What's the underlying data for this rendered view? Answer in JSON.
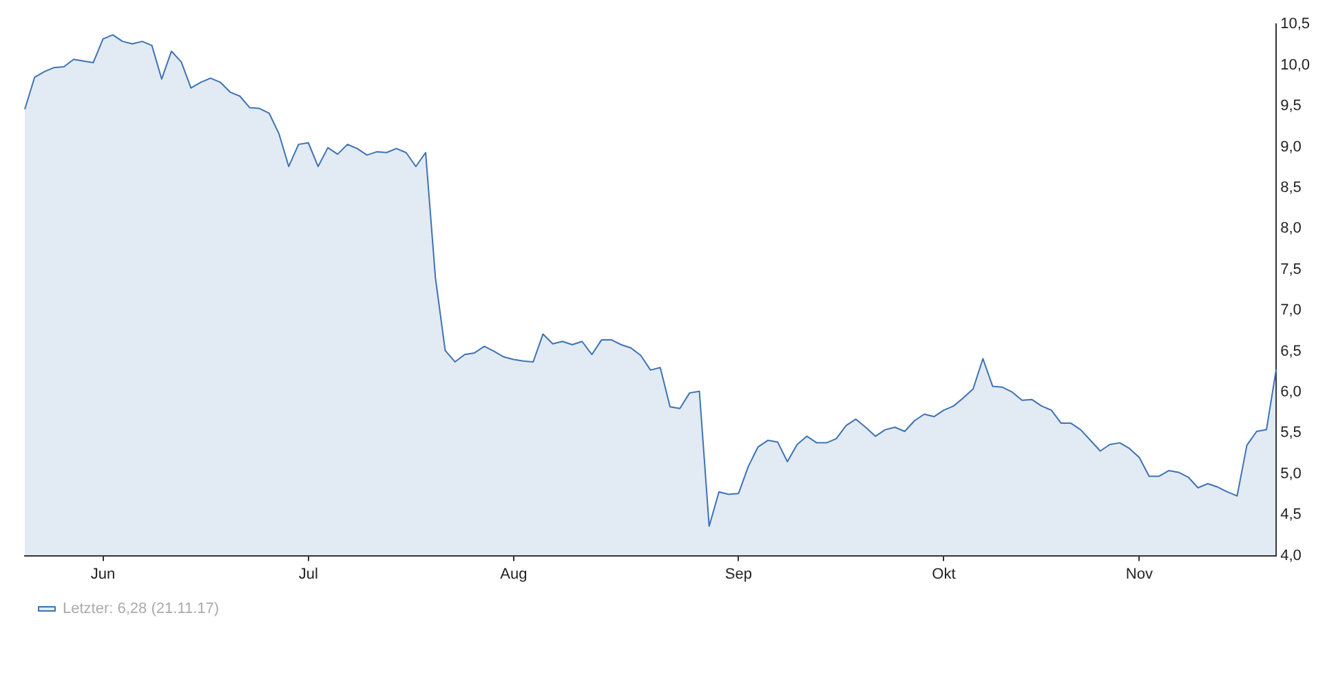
{
  "chart_data": {
    "type": "area",
    "categories": [
      null,
      null,
      null,
      null,
      null,
      null,
      null,
      null,
      "Jun",
      null,
      null,
      null,
      null,
      null,
      null,
      null,
      null,
      null,
      null,
      null,
      null,
      null,
      null,
      null,
      null,
      null,
      null,
      null,
      null,
      "Jul",
      null,
      null,
      null,
      null,
      null,
      null,
      null,
      null,
      null,
      null,
      null,
      null,
      null,
      null,
      null,
      null,
      null,
      null,
      null,
      null,
      "Aug",
      null,
      null,
      null,
      null,
      null,
      null,
      null,
      null,
      null,
      null,
      null,
      null,
      null,
      null,
      null,
      null,
      null,
      null,
      null,
      null,
      null,
      null,
      "Sep",
      null,
      null,
      null,
      null,
      null,
      null,
      null,
      null,
      null,
      null,
      null,
      null,
      null,
      null,
      null,
      null,
      null,
      null,
      null,
      null,
      "Okt",
      null,
      null,
      null,
      null,
      null,
      null,
      null,
      null,
      null,
      null,
      null,
      null,
      null,
      null,
      null,
      null,
      null,
      null,
      null,
      "Nov",
      null,
      null,
      null,
      null,
      null,
      null,
      null,
      null,
      null,
      null,
      null,
      null,
      null,
      null
    ],
    "series": [
      {
        "name": "Letzter: 6,28 (21.11.17)",
        "color": "#3d72b4",
        "values": [
          9.46,
          9.85,
          9.92,
          9.97,
          9.98,
          10.07,
          10.05,
          10.03,
          10.32,
          10.37,
          10.29,
          10.26,
          10.29,
          10.24,
          9.83,
          10.17,
          10.04,
          9.72,
          9.79,
          9.84,
          9.79,
          9.67,
          9.62,
          9.48,
          9.47,
          9.41,
          9.16,
          8.76,
          9.03,
          9.05,
          8.76,
          8.99,
          8.91,
          9.03,
          8.98,
          8.9,
          8.94,
          8.93,
          8.98,
          8.93,
          8.76,
          8.93,
          7.4,
          6.51,
          6.37,
          6.46,
          6.48,
          6.56,
          6.5,
          6.43,
          6.4,
          6.38,
          6.37,
          6.71,
          6.59,
          6.62,
          6.58,
          6.62,
          6.46,
          6.64,
          6.64,
          6.58,
          6.54,
          6.45,
          6.27,
          6.3,
          5.82,
          5.8,
          5.99,
          6.01,
          4.36,
          4.78,
          4.75,
          4.76,
          5.09,
          5.33,
          5.41,
          5.39,
          5.15,
          5.36,
          5.46,
          5.38,
          5.38,
          5.43,
          5.59,
          5.67,
          5.57,
          5.46,
          5.54,
          5.57,
          5.52,
          5.65,
          5.73,
          5.7,
          5.78,
          5.83,
          5.93,
          6.04,
          6.41,
          6.07,
          6.06,
          6.0,
          5.9,
          5.91,
          5.83,
          5.78,
          5.62,
          5.62,
          5.54,
          5.41,
          5.28,
          5.36,
          5.38,
          5.31,
          5.2,
          4.97,
          4.97,
          5.04,
          5.02,
          4.96,
          4.83,
          4.88,
          4.84,
          4.78,
          4.73,
          5.35,
          5.52,
          5.54,
          6.28
        ]
      }
    ],
    "ylim": [
      4.0,
      10.5
    ],
    "yticks": [
      {
        "value": 4.0,
        "label": "4,0"
      },
      {
        "value": 4.5,
        "label": "4,5"
      },
      {
        "value": 5.0,
        "label": "5,0"
      },
      {
        "value": 5.5,
        "label": "5,5"
      },
      {
        "value": 6.0,
        "label": "6,0"
      },
      {
        "value": 6.5,
        "label": "6,5"
      },
      {
        "value": 7.0,
        "label": "7,0"
      },
      {
        "value": 7.5,
        "label": "7,5"
      },
      {
        "value": 8.0,
        "label": "8,0"
      },
      {
        "value": 8.5,
        "label": "8,5"
      },
      {
        "value": 9.0,
        "label": "9,0"
      },
      {
        "value": 9.5,
        "label": "9,5"
      },
      {
        "value": 10.0,
        "label": "10,0"
      },
      {
        "value": 10.5,
        "label": "10,5"
      }
    ],
    "grid": false,
    "legend": "bottom left",
    "marker": "none",
    "line_style": "solid"
  }
}
